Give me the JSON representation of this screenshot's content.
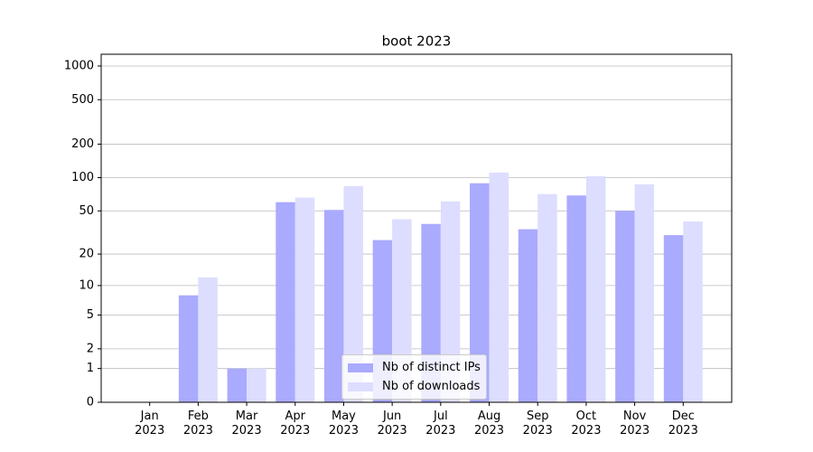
{
  "chart_data": {
    "type": "bar",
    "title": "boot 2023",
    "categories": [
      "Jan\n2023",
      "Feb\n2023",
      "Mar\n2023",
      "Apr\n2023",
      "May\n2023",
      "Jun\n2023",
      "Jul\n2023",
      "Aug\n2023",
      "Sep\n2023",
      "Oct\n2023",
      "Nov\n2023",
      "Dec\n2023"
    ],
    "series": [
      {
        "name": "Nb of distinct IPs",
        "color": "#aaaaff",
        "values": [
          0,
          8,
          1,
          60,
          51,
          27,
          38,
          89,
          34,
          69,
          50,
          30
        ]
      },
      {
        "name": "Nb of downloads",
        "color": "#ddddff",
        "values": [
          0,
          12,
          1,
          66,
          84,
          42,
          61,
          111,
          71,
          103,
          87,
          40
        ]
      }
    ],
    "yscale": "log1p",
    "ylim": [
      0,
      1273
    ],
    "yticks": [
      0,
      1,
      2,
      5,
      10,
      20,
      50,
      100,
      200,
      500,
      1000
    ],
    "grid": true,
    "legend": "lower center"
  }
}
